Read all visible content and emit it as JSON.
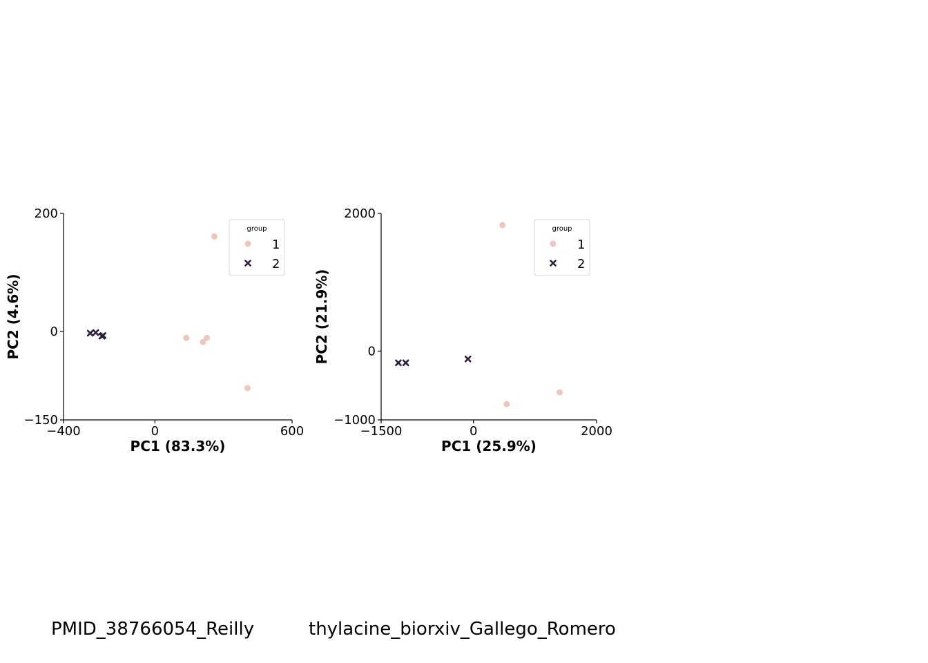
{
  "chart_data": [
    {
      "type": "scatter",
      "xlabel": "PC1 (83.3%)",
      "ylabel": "PC2 (4.6%)",
      "xlim": [
        -400,
        600
      ],
      "ylim": [
        -150,
        200
      ],
      "xticks": [
        -400,
        0,
        600
      ],
      "yticks": [
        -150,
        0,
        200
      ],
      "xtick_labels": [
        "−400",
        "0",
        "600"
      ],
      "ytick_labels": [
        "−150",
        "0",
        "200"
      ],
      "legend": {
        "title": "group",
        "placement": "top-right"
      },
      "series": [
        {
          "name": "1",
          "marker": "circle",
          "color": "#ebc7be",
          "points": [
            [
              260,
              161
            ],
            [
              137,
              -11
            ],
            [
              210,
              -18
            ],
            [
              227,
              -11
            ],
            [
              405,
              -96
            ]
          ]
        },
        {
          "name": "2",
          "marker": "x",
          "color": "#2d1e3e",
          "points": [
            [
              -283,
              -3
            ],
            [
              -259,
              -2
            ],
            [
              -232,
              -8
            ],
            [
              -227,
              -7
            ]
          ]
        }
      ],
      "caption": "PMID_38766054_Reilly"
    },
    {
      "type": "scatter",
      "xlabel": "PC1 (25.9%)",
      "ylabel": "PC2 (21.9%)",
      "xlim": [
        -1500,
        2000
      ],
      "ylim": [
        -1000,
        2000
      ],
      "xticks": [
        -1500,
        0,
        2000
      ],
      "yticks": [
        -1000,
        0,
        2000
      ],
      "xtick_labels": [
        "−1500",
        "0",
        "2000"
      ],
      "ytick_labels": [
        "−1000",
        "0",
        "2000"
      ],
      "legend": {
        "title": "group",
        "placement": "top-right"
      },
      "series": [
        {
          "name": "1",
          "marker": "circle",
          "color": "#ebc7be",
          "points": [
            [
              470,
              1830
            ],
            [
              540,
              -770
            ],
            [
              1400,
              -600
            ]
          ]
        },
        {
          "name": "2",
          "marker": "x",
          "color": "#2d1e3e",
          "points": [
            [
              -1220,
              -170
            ],
            [
              -1100,
              -170
            ],
            [
              -90,
              -115
            ]
          ]
        }
      ],
      "caption": "thylacine_biorxiv_Gallego_Romero"
    }
  ]
}
